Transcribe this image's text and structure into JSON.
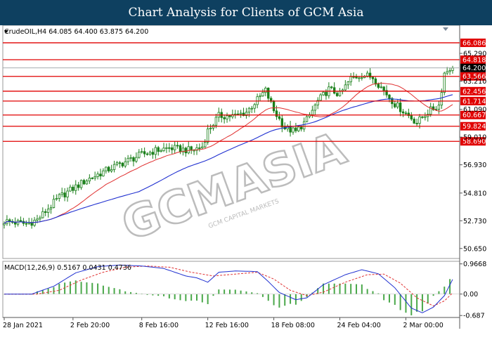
{
  "banner": {
    "title": "Chart Analysis for Clients of GCM Asia"
  },
  "watermark": {
    "text": "GCMASIA",
    "subtext": "GCM CAPITAL MARKETS",
    "color": "#b8b8b8"
  },
  "colors": {
    "candle": "#1a7f1a",
    "ma_fast": "#e03030",
    "ma_slow": "#2030d0",
    "resistance": "#e00000",
    "macd_hist": "#4aa84a",
    "macd_signal": "#e03030",
    "macd_line": "#2030d0",
    "label_bg": "#e00000",
    "price_label_bg": "#000000"
  },
  "chart_data": [
    {
      "type": "candlestick",
      "header": "CrudeOIL,H4  64.085 64.400 63.875 64.200",
      "ylim": [
        49.9,
        67.4
      ],
      "y_ticks": [
        "65.290",
        "63.210",
        "61.090",
        "59.010",
        "56.930",
        "54.810",
        "52.730",
        "50.650"
      ],
      "y_tick_values": [
        65.29,
        63.21,
        61.09,
        59.01,
        56.93,
        54.81,
        52.73,
        50.65
      ],
      "x_ticks": [
        "28 Jan 2021",
        "2 Feb 20:00",
        "8 Feb 16:00",
        "12 Feb 16:00",
        "18 Feb 08:00",
        "24 Feb 04:00",
        "2 Mar 00:00"
      ],
      "x_tick_index": [
        0,
        25,
        50,
        74,
        98,
        122,
        146
      ],
      "n_bars": 164,
      "price_path": [
        [
          0,
          52.7
        ],
        [
          8,
          52.5
        ],
        [
          12,
          52.8
        ],
        [
          20,
          54.5
        ],
        [
          30,
          55.8
        ],
        [
          40,
          56.8
        ],
        [
          50,
          57.7
        ],
        [
          55,
          58.0
        ],
        [
          60,
          58.2
        ],
        [
          68,
          58.0
        ],
        [
          72,
          58.3
        ],
        [
          74,
          59.5
        ],
        [
          78,
          60.6
        ],
        [
          84,
          60.6
        ],
        [
          88,
          60.9
        ],
        [
          92,
          61.8
        ],
        [
          95,
          62.5
        ],
        [
          98,
          61.0
        ],
        [
          102,
          59.7
        ],
        [
          106,
          59.4
        ],
        [
          110,
          60.3
        ],
        [
          114,
          61.7
        ],
        [
          118,
          62.6
        ],
        [
          122,
          62.2
        ],
        [
          126,
          63.4
        ],
        [
          130,
          63.7
        ],
        [
          134,
          63.5
        ],
        [
          138,
          62.5
        ],
        [
          142,
          61.5
        ],
        [
          146,
          60.8
        ],
        [
          150,
          60.1
        ],
        [
          154,
          60.9
        ],
        [
          158,
          61.4
        ],
        [
          160,
          63.8
        ],
        [
          162,
          64.2
        ],
        [
          163,
          64.2
        ]
      ],
      "last_price": "64.200",
      "resistance_levels": [
        "66.086",
        "64.818",
        "63.566",
        "62.456",
        "61.714",
        "60.667",
        "59.824",
        "58.690"
      ],
      "resistance_values": [
        66.086,
        64.818,
        63.566,
        62.456,
        61.714,
        60.667,
        59.824,
        58.69
      ]
    },
    {
      "type": "macd",
      "header": "MACD(12,26,9)  0.5167  0.0431  0.4736",
      "ylim": [
        -0.75,
        1.05
      ],
      "y_ticks": [
        "0.9668",
        "0.00",
        "-0.687"
      ],
      "y_tick_values": [
        0.9668,
        0.0,
        -0.687
      ],
      "macd_path": [
        [
          0,
          0.0
        ],
        [
          10,
          0.0
        ],
        [
          18,
          0.25
        ],
        [
          26,
          0.68
        ],
        [
          34,
          0.88
        ],
        [
          42,
          0.93
        ],
        [
          50,
          0.9
        ],
        [
          58,
          0.82
        ],
        [
          66,
          0.58
        ],
        [
          70,
          0.52
        ],
        [
          74,
          0.38
        ],
        [
          78,
          0.7
        ],
        [
          84,
          0.74
        ],
        [
          92,
          0.72
        ],
        [
          96,
          0.4
        ],
        [
          100,
          0.05
        ],
        [
          106,
          -0.18
        ],
        [
          110,
          -0.12
        ],
        [
          116,
          0.3
        ],
        [
          124,
          0.62
        ],
        [
          130,
          0.78
        ],
        [
          136,
          0.65
        ],
        [
          142,
          0.2
        ],
        [
          148,
          -0.45
        ],
        [
          152,
          -0.6
        ],
        [
          156,
          -0.42
        ],
        [
          160,
          -0.05
        ],
        [
          163,
          0.47
        ]
      ],
      "signal_path": [
        [
          0,
          0.0
        ],
        [
          12,
          0.0
        ],
        [
          20,
          0.12
        ],
        [
          28,
          0.45
        ],
        [
          36,
          0.7
        ],
        [
          44,
          0.86
        ],
        [
          52,
          0.9
        ],
        [
          60,
          0.86
        ],
        [
          68,
          0.7
        ],
        [
          76,
          0.58
        ],
        [
          84,
          0.64
        ],
        [
          92,
          0.7
        ],
        [
          98,
          0.48
        ],
        [
          104,
          0.12
        ],
        [
          110,
          -0.05
        ],
        [
          116,
          0.06
        ],
        [
          124,
          0.38
        ],
        [
          132,
          0.62
        ],
        [
          138,
          0.64
        ],
        [
          144,
          0.35
        ],
        [
          150,
          -0.12
        ],
        [
          156,
          -0.38
        ],
        [
          160,
          -0.22
        ],
        [
          163,
          0.04
        ]
      ]
    }
  ]
}
